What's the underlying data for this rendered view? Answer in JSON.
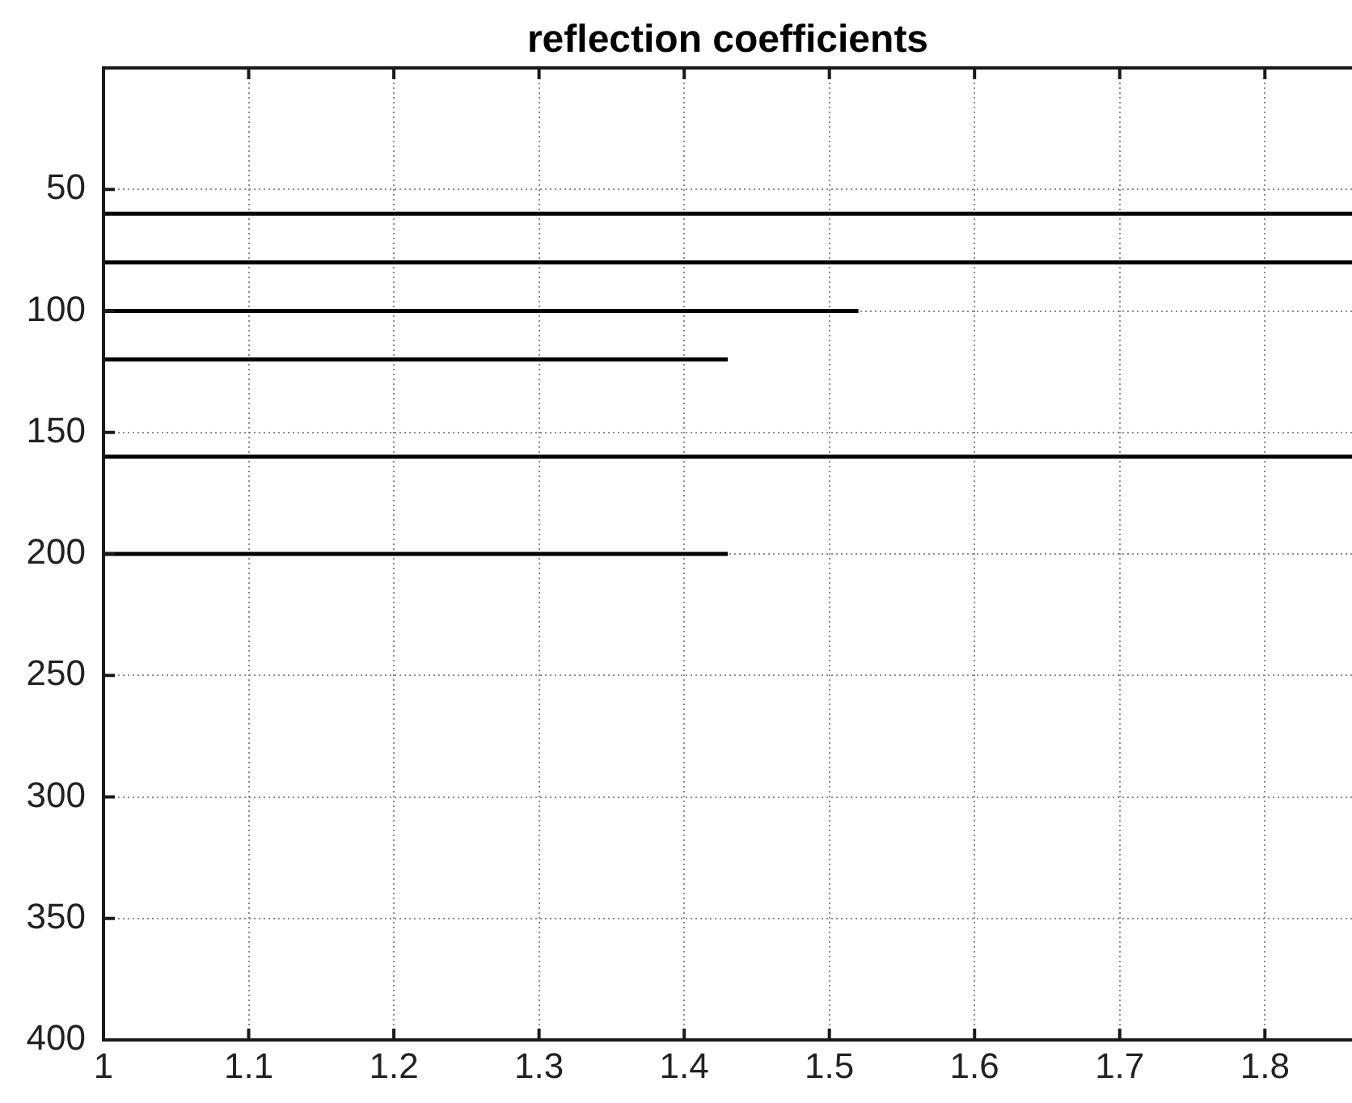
{
  "chart_data": {
    "type": "line",
    "title": "reflection coefficients",
    "xlim": [
      1,
      1.86
    ],
    "xticks": [
      1,
      1.1,
      1.2,
      1.3,
      1.4,
      1.5,
      1.6,
      1.7,
      1.8
    ],
    "ylim": [
      400,
      0
    ],
    "yticks": [
      50,
      100,
      150,
      200,
      250,
      300,
      350,
      400
    ],
    "grid": true,
    "marker": "none",
    "line_style": "solid",
    "series": [
      {
        "color": "#000000",
        "x": [
          1,
          1.86
        ],
        "values": [
          60,
          60
        ]
      },
      {
        "color": "#000000",
        "x": [
          1,
          1.86
        ],
        "values": [
          80,
          80
        ]
      },
      {
        "color": "#000000",
        "x": [
          1,
          1.52
        ],
        "values": [
          100,
          100
        ]
      },
      {
        "color": "#000000",
        "x": [
          1,
          1.43
        ],
        "values": [
          120,
          120
        ]
      },
      {
        "color": "#000000",
        "x": [
          1,
          1.86
        ],
        "values": [
          160,
          160
        ]
      },
      {
        "color": "#000000",
        "x": [
          1,
          1.43
        ],
        "values": [
          200,
          200
        ]
      }
    ]
  }
}
